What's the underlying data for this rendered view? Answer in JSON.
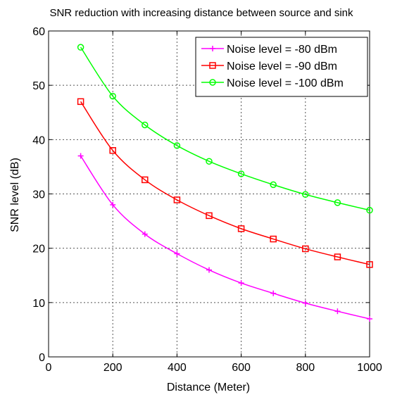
{
  "chart_data": {
    "type": "line",
    "title": "SNR reduction with increasing distance between source and sink",
    "xlabel": "Distance (Meter)",
    "ylabel": "SNR level (dB)",
    "xlim": [
      0,
      1000
    ],
    "ylim": [
      0,
      60
    ],
    "xticks": [
      0,
      200,
      400,
      600,
      800,
      1000
    ],
    "yticks": [
      0,
      10,
      20,
      30,
      40,
      50,
      60
    ],
    "xtick_labels": [
      "0",
      "200",
      "400",
      "600",
      "800",
      "1000"
    ],
    "ytick_labels": [
      "0",
      "10",
      "20",
      "30",
      "40",
      "50",
      "60"
    ],
    "grid": true,
    "legend_position": "top-right",
    "x": [
      100,
      200,
      300,
      400,
      500,
      600,
      700,
      800,
      900,
      1000
    ],
    "series": [
      {
        "name": "Noise level = -80 dBm",
        "color": "#ff00ff",
        "marker": "plus",
        "values": [
          37,
          28,
          22.6,
          19,
          16,
          13.6,
          11.7,
          9.9,
          8.4,
          7
        ]
      },
      {
        "name": "Noise level = -90 dBm",
        "color": "#ff0000",
        "marker": "square",
        "values": [
          47,
          38,
          32.6,
          28.9,
          26,
          23.6,
          21.7,
          19.9,
          18.4,
          17
        ]
      },
      {
        "name": "Noise level = -100 dBm",
        "color": "#00ff00",
        "marker": "circle",
        "values": [
          57,
          48,
          42.7,
          38.9,
          36,
          33.7,
          31.7,
          29.9,
          28.4,
          27
        ]
      }
    ]
  }
}
